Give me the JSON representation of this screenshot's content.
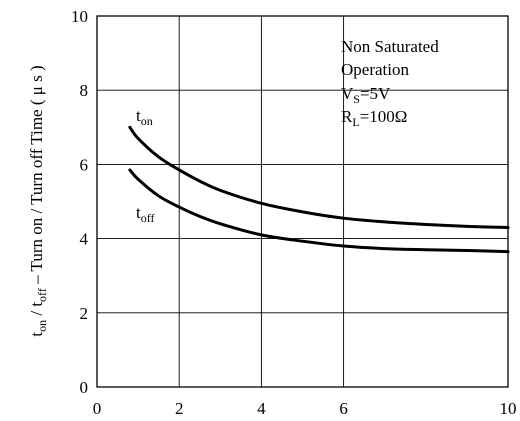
{
  "chart_data": {
    "type": "line",
    "ylabel": {
      "t1": "t",
      "s1": "on",
      "t2": " / t",
      "s2": "off",
      "t3": " – Turn on / Turn off Time ( μ s )"
    },
    "xlabel": "",
    "xlim": [
      0,
      10
    ],
    "ylim": [
      0,
      10
    ],
    "xticks": [
      "0",
      "2",
      "4",
      "6",
      "10"
    ],
    "xtick_values": [
      0,
      2,
      4,
      6,
      10
    ],
    "yticks": [
      "0",
      "2",
      "4",
      "6",
      "8",
      "10"
    ],
    "ytick_values": [
      0,
      2,
      4,
      6,
      8,
      10
    ],
    "grid": true,
    "annotation": {
      "line1": "Non Saturated",
      "line2": "Operation",
      "vs_main": "V",
      "vs_sub": "S",
      "vs_rest": "=5V",
      "rl_main": "R",
      "rl_sub": "L",
      "rl_rest": "=100Ω"
    },
    "series": [
      {
        "name": "t_on",
        "label_main": "t",
        "label_sub": "on",
        "x": [
          0.8,
          1.0,
          1.5,
          2.0,
          2.5,
          3.0,
          4.0,
          5.0,
          6.0,
          7.0,
          8.0,
          9.0,
          10.0
        ],
        "y": [
          7.0,
          6.7,
          6.2,
          5.85,
          5.55,
          5.3,
          4.95,
          4.72,
          4.55,
          4.45,
          4.38,
          4.33,
          4.3
        ]
      },
      {
        "name": "t_off",
        "label_main": "t",
        "label_sub": "off",
        "x": [
          0.8,
          1.0,
          1.5,
          2.0,
          2.5,
          3.0,
          4.0,
          5.0,
          6.0,
          7.0,
          8.0,
          9.0,
          10.0
        ],
        "y": [
          5.85,
          5.6,
          5.15,
          4.85,
          4.6,
          4.4,
          4.1,
          3.93,
          3.8,
          3.73,
          3.7,
          3.68,
          3.65
        ]
      }
    ]
  }
}
